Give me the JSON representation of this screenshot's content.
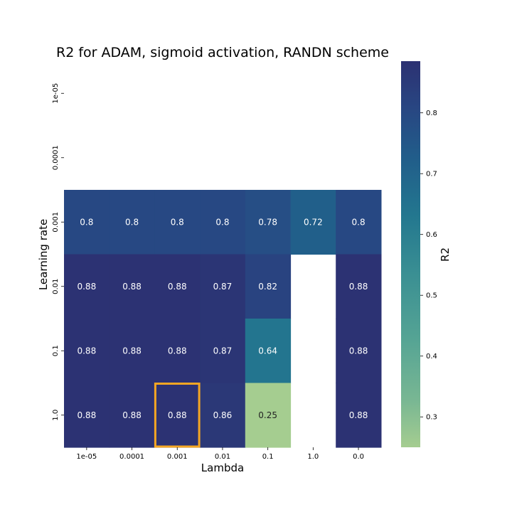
{
  "chart_data": {
    "type": "heatmap",
    "title": "R2 for ADAM, sigmoid activation, RANDN scheme",
    "xlabel": "Lambda",
    "ylabel": "Learning rate",
    "x_categories": [
      "1e-05",
      "0.0001",
      "0.001",
      "0.01",
      "0.1",
      "1.0",
      "0.0"
    ],
    "y_categories": [
      "1e-05",
      "0.0001",
      "0.001",
      "0.01",
      "0.1",
      "1.0"
    ],
    "values": [
      [
        null,
        null,
        null,
        null,
        null,
        null,
        null
      ],
      [
        null,
        null,
        null,
        null,
        null,
        null,
        null
      ],
      [
        0.8,
        0.8,
        0.8,
        0.8,
        0.78,
        0.72,
        0.8
      ],
      [
        0.88,
        0.88,
        0.88,
        0.87,
        0.82,
        null,
        0.88
      ],
      [
        0.88,
        0.88,
        0.88,
        0.87,
        0.64,
        null,
        0.88
      ],
      [
        0.88,
        0.88,
        0.88,
        0.86,
        0.25,
        null,
        0.88
      ]
    ],
    "colorbar": {
      "label": "R2",
      "min": 0.25,
      "max": 0.885,
      "ticks": [
        "0.3",
        "0.4",
        "0.5",
        "0.6",
        "0.7",
        "0.8"
      ],
      "colormap": "crest"
    },
    "highlight": {
      "row": 5,
      "col": 2,
      "color": "#f5a623"
    }
  }
}
